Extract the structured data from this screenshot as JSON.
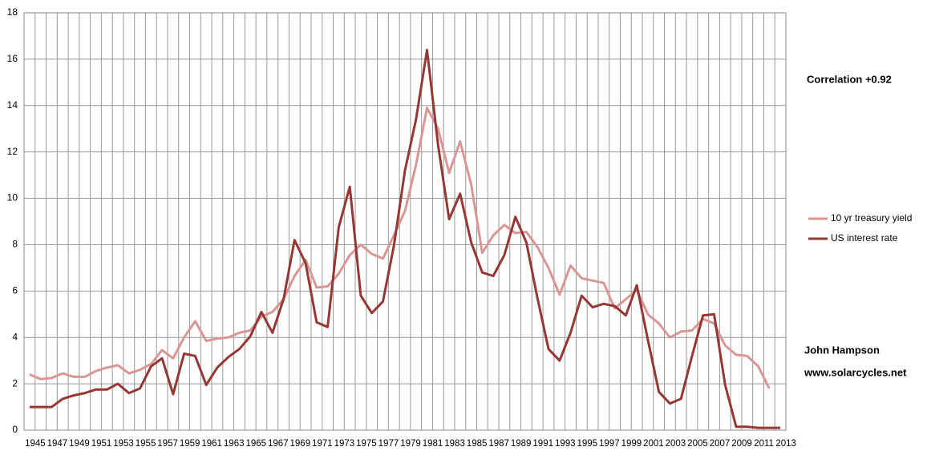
{
  "chart_data": {
    "type": "line",
    "categories": [
      "1945",
      null,
      "1947",
      null,
      "1949",
      null,
      "1951",
      null,
      "1953",
      null,
      "1955",
      null,
      "1957",
      null,
      "1959",
      null,
      "1961",
      null,
      "1963",
      null,
      "1965",
      null,
      "1967",
      null,
      "1969",
      null,
      "1971",
      null,
      "1973",
      null,
      "1975",
      null,
      "1977",
      null,
      "1979",
      null,
      "1981",
      null,
      "1983",
      null,
      "1985",
      null,
      "1987",
      null,
      "1989",
      null,
      "1991",
      null,
      "1993",
      null,
      "1995",
      null,
      "1997",
      null,
      "1999",
      null,
      "2001",
      null,
      "2003",
      null,
      "2005",
      null,
      "2007",
      null,
      "2009",
      null,
      "2011",
      null,
      "2013"
    ],
    "series": [
      {
        "name": "10 yr treasury yield",
        "color": "#d99694",
        "values": [
          2.4,
          2.2,
          2.25,
          2.45,
          2.3,
          2.3,
          2.55,
          2.7,
          2.8,
          2.45,
          2.6,
          2.85,
          3.45,
          3.1,
          4.0,
          4.7,
          3.85,
          3.95,
          4.0,
          4.2,
          4.3,
          4.9,
          5.1,
          5.65,
          6.65,
          7.35,
          6.15,
          6.2,
          6.75,
          7.55,
          8.0,
          7.6,
          7.4,
          8.4,
          9.45,
          11.45,
          13.9,
          13.0,
          11.1,
          12.45,
          10.6,
          7.65,
          8.4,
          8.85,
          8.5,
          8.55,
          7.9,
          7.0,
          5.85,
          7.1,
          6.55,
          6.45,
          6.35,
          5.25,
          5.65,
          6.05,
          5.0,
          4.6,
          4.0,
          4.25,
          4.3,
          4.8,
          4.6,
          3.65,
          3.25,
          3.2,
          2.75,
          1.8,
          null
        ]
      },
      {
        "name": "US interest rate",
        "color": "#953735",
        "values": [
          1.0,
          1.0,
          1.0,
          1.35,
          1.5,
          1.6,
          1.75,
          1.75,
          2.0,
          1.6,
          1.8,
          2.75,
          3.1,
          1.55,
          3.3,
          3.2,
          1.95,
          2.7,
          3.15,
          3.5,
          4.05,
          5.1,
          4.2,
          5.65,
          8.2,
          7.2,
          4.65,
          4.45,
          8.75,
          10.5,
          5.8,
          5.05,
          5.55,
          7.95,
          11.2,
          13.4,
          16.4,
          12.3,
          9.1,
          10.2,
          8.1,
          6.8,
          6.65,
          7.55,
          9.2,
          8.1,
          5.7,
          3.5,
          3.0,
          4.2,
          5.8,
          5.3,
          5.45,
          5.35,
          4.95,
          6.25,
          3.9,
          1.65,
          1.15,
          1.35,
          3.2,
          4.95,
          5.0,
          1.95,
          0.15,
          0.15,
          0.1,
          0.1,
          0.1
        ]
      }
    ],
    "ylim": [
      0,
      18
    ],
    "yticks": [
      0,
      2,
      4,
      6,
      8,
      10,
      12,
      14,
      16,
      18
    ],
    "grid": true,
    "legend": "right",
    "annotations": [
      "Correlation +0.92",
      "John Hampson",
      "www.solarcycles.net"
    ]
  }
}
